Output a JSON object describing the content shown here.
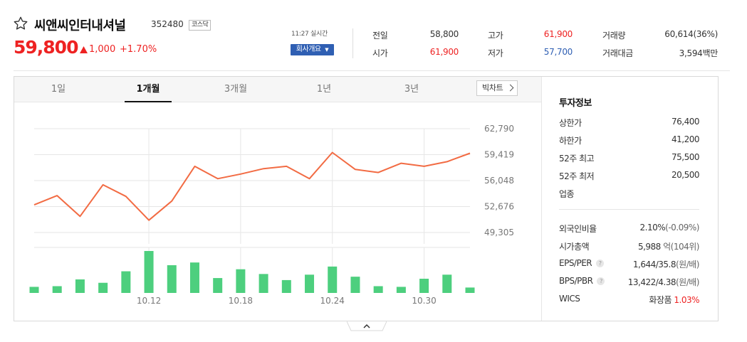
{
  "header": {
    "name": "씨앤씨인터내셔널",
    "code": "352480",
    "market": "코스닥",
    "price": "59,800",
    "change": "1,000",
    "change_pct": "+1.70%",
    "time": "11:27 실시간",
    "company_button": "회사개요",
    "colors": {
      "up": "#e22222",
      "down": "#2f5fb3"
    }
  },
  "quote": [
    {
      "label": "전일",
      "value": "58,800",
      "tone": "neutral"
    },
    {
      "label": "시가",
      "value": "61,900",
      "tone": "up"
    },
    {
      "label": "고가",
      "value": "61,900",
      "tone": "up"
    },
    {
      "label": "저가",
      "value": "57,700",
      "tone": "down"
    },
    {
      "label": "거래량",
      "value": "60,614(36%)",
      "tone": "neutral"
    },
    {
      "label": "거래대금",
      "value": "3,594백만",
      "tone": "neutral"
    }
  ],
  "tabs": [
    "1일",
    "1개월",
    "3개월",
    "1년",
    "3년"
  ],
  "active_tab": "1개월",
  "big_chart_button": "빅차트",
  "chart_data": {
    "type": "line",
    "title": "",
    "y_ticks": [
      "62,790",
      "59,419",
      "56,048",
      "52,676",
      "49,305"
    ],
    "ylim": [
      49305,
      62790
    ],
    "x_ticks": [
      "10.12",
      "10.18",
      "10.24",
      "10.30"
    ],
    "price": [
      52900,
      54100,
      51400,
      55500,
      54000,
      50900,
      53400,
      57900,
      56300,
      56900,
      57600,
      57900,
      56300,
      59700,
      57500,
      57100,
      58300,
      57900,
      58500,
      59600
    ],
    "volume": [
      9,
      10,
      20,
      15,
      32,
      62,
      41,
      45,
      22,
      35,
      28,
      19,
      27,
      39,
      24,
      10,
      9,
      21,
      27,
      8
    ],
    "line_color": "#f26b43",
    "volume_color": "#4dcf7e"
  },
  "invest": {
    "title": "투자정보",
    "rows": [
      {
        "label": "상한가",
        "value": "76,400",
        "tone": "up"
      },
      {
        "label": "하한가",
        "value": "41,200",
        "tone": "down"
      },
      {
        "label": "52주 최고",
        "value": "75,500",
        "tone": "neutral"
      },
      {
        "label": "52주 최저",
        "value": "20,500",
        "tone": "neutral"
      },
      {
        "label": "업종",
        "value": "",
        "tone": "neutral"
      }
    ],
    "rows2": [
      {
        "label": "외국인비율",
        "value": "2.10%",
        "extra": "(-0.09%)",
        "help": false
      },
      {
        "label": "시가총액",
        "value": "5,988",
        "extra": "억(104위)",
        "help": false
      },
      {
        "label": "EPS/PER",
        "value": "1,644/35.8",
        "extra": "(원/배)",
        "help": true
      },
      {
        "label": "BPS/PBR",
        "value": "13,422/4.38",
        "extra": "(원/배)",
        "help": true
      },
      {
        "label": "WICS",
        "value": "화장품",
        "extra": "1.03%",
        "help": false
      }
    ],
    "help_glyph": "?"
  }
}
